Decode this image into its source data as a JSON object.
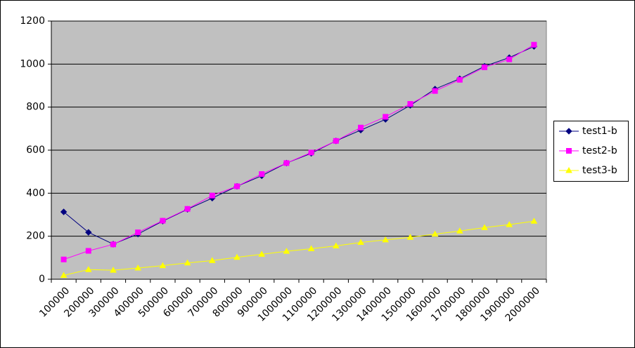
{
  "chart_data": {
    "type": "line",
    "categories": [
      "100000",
      "200000",
      "300000",
      "400000",
      "500000",
      "600000",
      "700000",
      "800000",
      "900000",
      "1000000",
      "1100000",
      "1200000",
      "1300000",
      "1400000",
      "1500000",
      "1600000",
      "1700000",
      "1800000",
      "1900000",
      "2000000"
    ],
    "series": [
      {
        "name": "test1-b",
        "color": "#000080",
        "marker": "diamond",
        "values": [
          313,
          218,
          163,
          210,
          270,
          325,
          377,
          432,
          481,
          540,
          585,
          643,
          693,
          743,
          808,
          884,
          932,
          990,
          1030,
          1082
        ]
      },
      {
        "name": "test2-b",
        "color": "#ff00ff",
        "marker": "square",
        "values": [
          92,
          132,
          162,
          218,
          272,
          327,
          389,
          432,
          489,
          540,
          589,
          643,
          705,
          755,
          815,
          875,
          927,
          985,
          1022,
          1090
        ]
      },
      {
        "name": "test3-b",
        "color": "#ffff00",
        "marker": "triangle",
        "values": [
          18,
          45,
          42,
          52,
          63,
          76,
          87,
          102,
          116,
          130,
          142,
          155,
          171,
          183,
          195,
          210,
          224,
          240,
          254,
          270
        ]
      }
    ],
    "ylim": [
      0,
      1200
    ],
    "yticks": [
      0,
      200,
      400,
      600,
      800,
      1000,
      1200
    ],
    "grid": true,
    "legend": "right",
    "plot_background": "#c0c0c0"
  }
}
